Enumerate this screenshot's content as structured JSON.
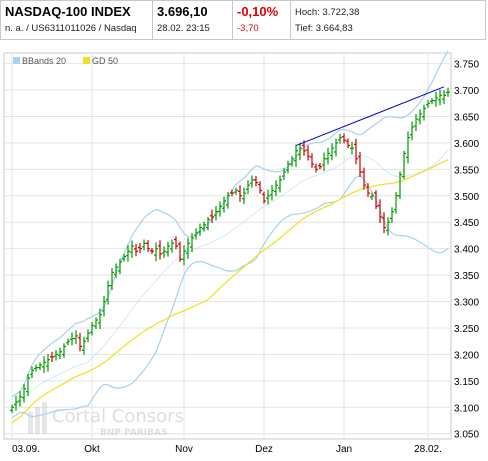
{
  "header": {
    "name": "NASDAQ-100 INDEX",
    "isin": "n. a. / US6311011026 / Nasdaq",
    "price": "3.696,10",
    "timestamp": "28.02. 23:15",
    "change_pct": "-0,10%",
    "change_abs": "-3,70",
    "high": "Hoch: 3.722,38",
    "low": "Tief: 3.664,83"
  },
  "watermark": {
    "brand": "Cortal Consors",
    "sub": "BNP PARIBAS"
  },
  "chart_data": {
    "type": "ohlc",
    "legend": [
      {
        "name": "BBands 20",
        "color": "#a9d1f0"
      },
      {
        "name": "GD 50",
        "color": "#f0e020"
      }
    ],
    "up_color": "#009900",
    "down_color": "#cc0000",
    "x_labels": [
      {
        "label": "03.09.",
        "index": 0
      },
      {
        "label": "Okt",
        "index": 20
      },
      {
        "label": "Nov",
        "index": 43
      },
      {
        "label": "Dez",
        "index": 63
      },
      {
        "label": "Jan",
        "index": 83
      },
      {
        "label": "28.02.",
        "index": 104
      }
    ],
    "y_ticks": [
      "3.050",
      "3.100",
      "3.150",
      "3.200",
      "3.250",
      "3.300",
      "3.350",
      "3.400",
      "3.450",
      "3.500",
      "3.550",
      "3.600",
      "3.650",
      "3.700",
      "3.750"
    ],
    "y_tick_values": [
      3050,
      3100,
      3150,
      3200,
      3250,
      3300,
      3350,
      3400,
      3450,
      3500,
      3550,
      3600,
      3650,
      3700,
      3750
    ],
    "ylim": [
      3040,
      3770
    ],
    "grid": true,
    "trendline": {
      "x": [
        71,
        108
      ],
      "y": [
        3595,
        3706
      ],
      "color": "#0000cc"
    },
    "close": [
      3100,
      3110,
      3120,
      3135,
      3155,
      3170,
      3175,
      3180,
      3185,
      3190,
      3195,
      3200,
      3205,
      3215,
      3225,
      3230,
      3235,
      3215,
      3225,
      3240,
      3255,
      3265,
      3275,
      3300,
      3330,
      3355,
      3365,
      3375,
      3385,
      3395,
      3405,
      3395,
      3400,
      3410,
      3400,
      3395,
      3400,
      3390,
      3395,
      3405,
      3410,
      3405,
      3380,
      3395,
      3410,
      3420,
      3430,
      3440,
      3445,
      3455,
      3460,
      3470,
      3480,
      3490,
      3500,
      3505,
      3510,
      3500,
      3505,
      3520,
      3530,
      3525,
      3510,
      3490,
      3500,
      3510,
      3520,
      3530,
      3545,
      3560,
      3570,
      3585,
      3590,
      3585,
      3575,
      3560,
      3550,
      3555,
      3570,
      3580,
      3590,
      3600,
      3610,
      3605,
      3595,
      3590,
      3570,
      3545,
      3520,
      3505,
      3500,
      3480,
      3460,
      3440,
      3450,
      3470,
      3500,
      3540,
      3580,
      3610,
      3630,
      3645,
      3655,
      3665,
      3675,
      3680,
      3685,
      3690,
      3690,
      3696
    ]
  }
}
